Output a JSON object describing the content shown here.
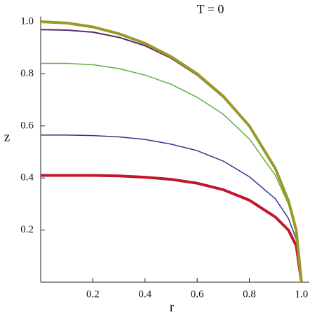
{
  "chart_data": {
    "type": "line",
    "title": "T = 0",
    "x_label": "r",
    "y_label": "z",
    "x": [
      0,
      0.1,
      0.2,
      0.3,
      0.4,
      0.5,
      0.6,
      0.7,
      0.8,
      0.9,
      0.95,
      0.98,
      1.0
    ],
    "series": [
      {
        "color": "#9a9a2a",
        "width": 4,
        "values": [
          1.0,
          0.995,
          0.98,
          0.954,
          0.917,
          0.866,
          0.8,
          0.714,
          0.6,
          0.436,
          0.312,
          0.199,
          0
        ]
      },
      {
        "color": "#5a2a6a",
        "width": 2,
        "values": [
          0.97,
          0.968,
          0.96,
          0.94,
          0.908,
          0.86,
          0.795,
          0.71,
          0.597,
          0.433,
          0.31,
          0.197,
          0
        ]
      },
      {
        "color": "#5fb040",
        "width": 1.5,
        "values": [
          0.84,
          0.84,
          0.835,
          0.82,
          0.795,
          0.76,
          0.71,
          0.645,
          0.55,
          0.41,
          0.3,
          0.19,
          0
        ]
      },
      {
        "color": "#2a3a8a",
        "width": 1.5,
        "values": [
          0.565,
          0.565,
          0.563,
          0.558,
          0.548,
          0.53,
          0.505,
          0.465,
          0.405,
          0.32,
          0.245,
          0.165,
          0
        ]
      },
      {
        "color": "#c0182a",
        "width": 4,
        "values": [
          0.41,
          0.41,
          0.41,
          0.408,
          0.403,
          0.395,
          0.38,
          0.355,
          0.315,
          0.25,
          0.2,
          0.14,
          0
        ]
      }
    ],
    "xlim": [
      0,
      1.03
    ],
    "ylim": [
      0,
      1.02
    ],
    "xticks": [
      0.2,
      0.4,
      0.6,
      0.8,
      {
        "value": 1,
        "label": "1.0"
      }
    ],
    "yticks": [
      0.2,
      0.4,
      0.6,
      0.8,
      {
        "value": 1,
        "label": "1.0"
      }
    ]
  }
}
